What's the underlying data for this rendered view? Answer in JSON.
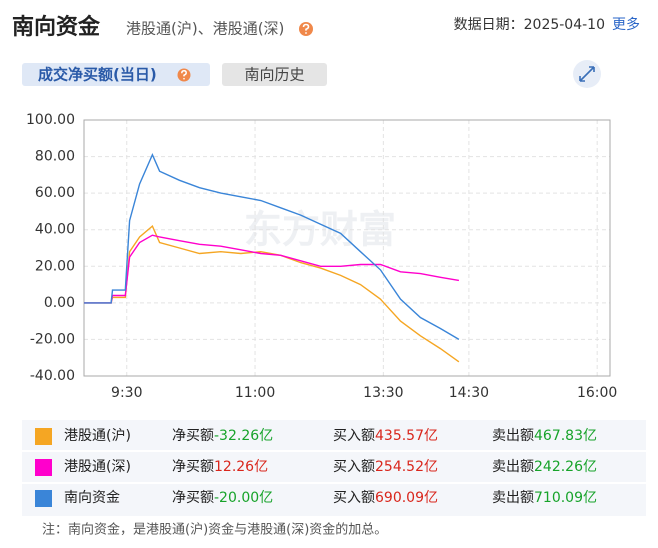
{
  "header": {
    "title": "南向资金",
    "subtitle": "港股通(沪)、港股通(深)",
    "date_label": "数据日期：",
    "date": "2025-04-10",
    "more": "更多"
  },
  "tabs": [
    "成交净买额(当日)",
    "南向历史"
  ],
  "chart_data": {
    "type": "line",
    "watermark": "东方财富",
    "x": [
      0,
      19,
      20,
      29,
      32,
      39,
      48,
      53,
      67,
      81,
      96,
      110,
      124,
      138,
      152,
      166,
      180,
      194,
      208,
      222,
      236,
      250,
      263
    ],
    "xlim": [
      0,
      369
    ],
    "xticks": [
      {
        "value": 30,
        "label": "9:30"
      },
      {
        "value": 120,
        "label": "11:00"
      },
      {
        "value": 210,
        "label": "13:30"
      },
      {
        "value": 270,
        "label": "14:30"
      },
      {
        "value": 360,
        "label": "16:00"
      }
    ],
    "ylim": [
      -40,
      100
    ],
    "yticks": [
      {
        "value": -40,
        "label": "-40.00"
      },
      {
        "value": -20,
        "label": "-20.00"
      },
      {
        "value": 0,
        "label": "0.00"
      },
      {
        "value": 20,
        "label": "20.00"
      },
      {
        "value": 40,
        "label": "40.00"
      },
      {
        "value": 60,
        "label": "60.00"
      },
      {
        "value": 80,
        "label": "80.00"
      },
      {
        "value": 100,
        "label": "100.00"
      }
    ],
    "grid": true,
    "series": [
      {
        "name": "港股通(沪)",
        "color": "#f5a623",
        "values": [
          0,
          0,
          3,
          3,
          28,
          36,
          42,
          33,
          30,
          27,
          28,
          27,
          28,
          26,
          22,
          19,
          15,
          10,
          2,
          -10,
          -18,
          -25,
          -32.26
        ]
      },
      {
        "name": "港股通(深)",
        "color": "#ff00cc",
        "values": [
          0,
          0,
          4,
          4,
          25,
          33,
          37,
          36,
          34,
          32,
          31,
          29,
          27,
          26,
          23,
          20,
          20,
          21,
          21,
          17,
          16,
          14,
          12.26
        ]
      },
      {
        "name": "南向资金",
        "color": "#3a85d8",
        "values": [
          0,
          0,
          7,
          7,
          45,
          65,
          81,
          72,
          67,
          63,
          60,
          58,
          56,
          52,
          48,
          43,
          38,
          28,
          18,
          2,
          -8,
          -14,
          -20
        ]
      }
    ]
  },
  "summary": {
    "labels": [
      "净买额",
      "买入额",
      "卖出额"
    ],
    "rows": [
      [
        "-32.26亿",
        "435.57亿",
        "467.83亿"
      ],
      [
        "12.26亿",
        "254.52亿",
        "242.26亿"
      ],
      [
        "-20.00亿",
        "690.09亿",
        "710.09亿"
      ]
    ]
  },
  "note": "注：南向资金，是港股通(沪)资金与港股通(深)资金的加总。"
}
